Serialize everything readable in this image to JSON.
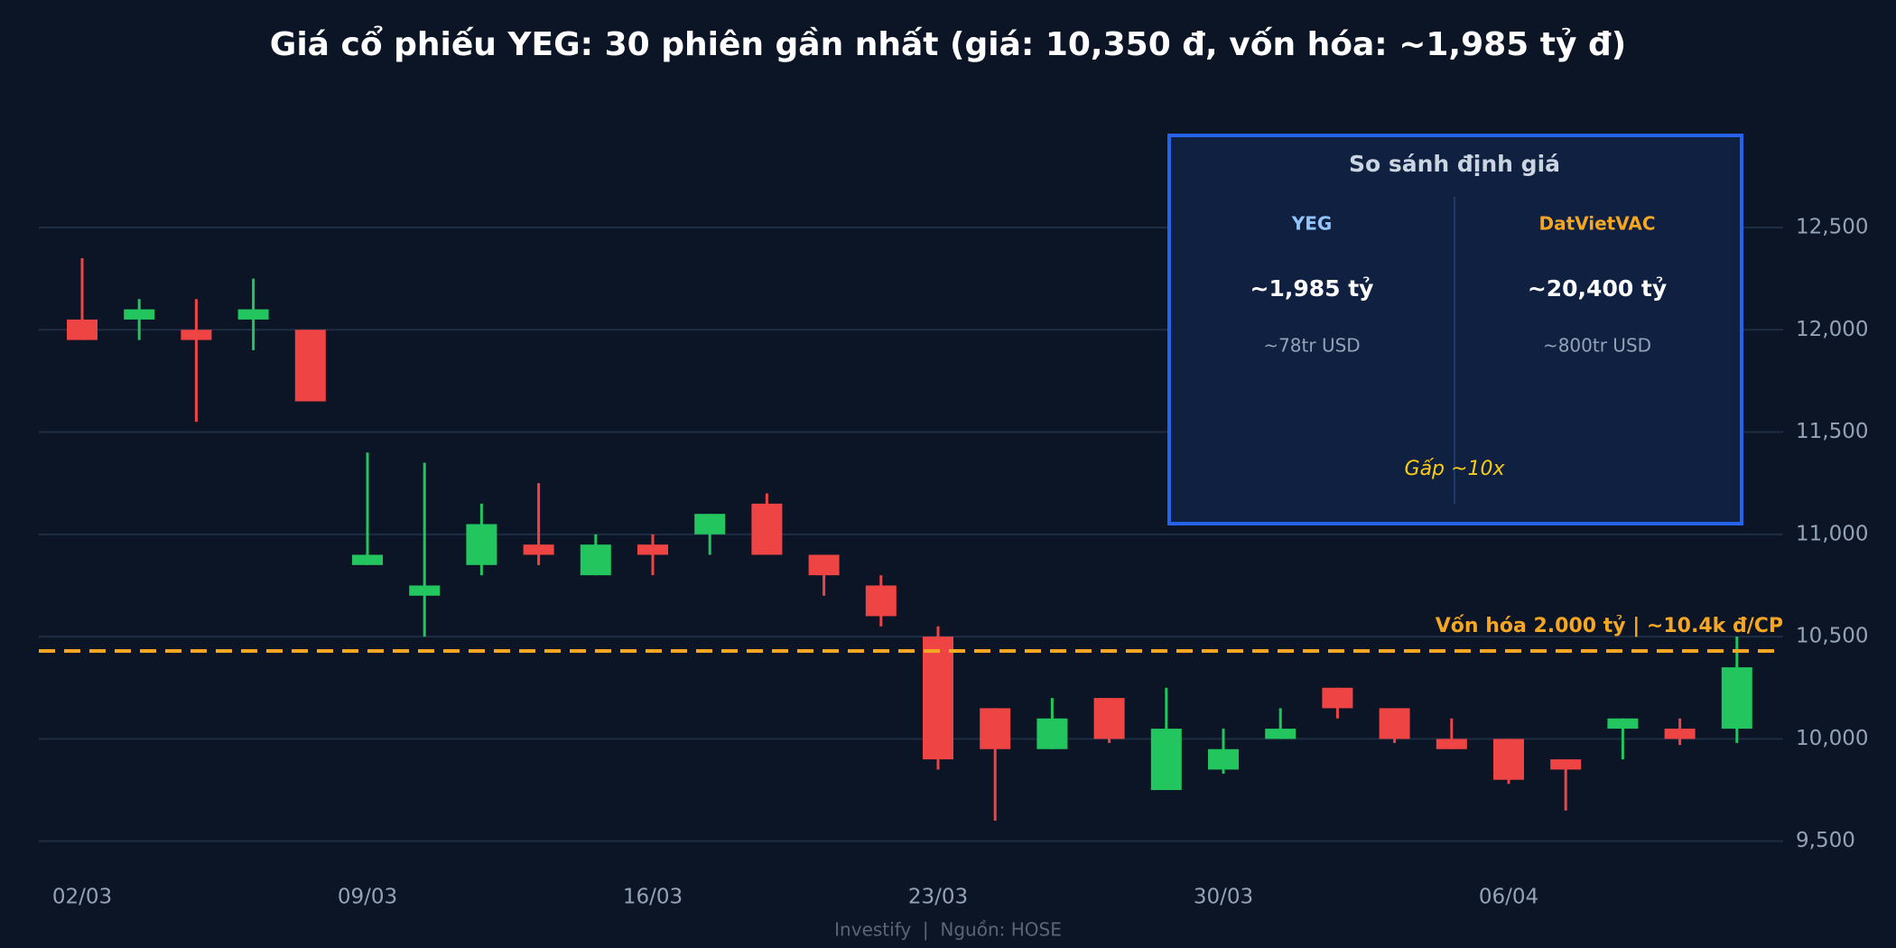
{
  "chart_data": {
    "type": "candlestick",
    "title": "Giá cổ phiếu YEG: 30 phiên gần nhất (giá: 10,350 đ, vốn hóa: ~1,985 tỷ đ)",
    "categories": [
      "02/03",
      null,
      null,
      null,
      null,
      "09/03",
      null,
      null,
      null,
      null,
      "16/03",
      null,
      null,
      null,
      null,
      "23/03",
      null,
      null,
      null,
      null,
      "30/03",
      null,
      null,
      null,
      null,
      "06/04",
      null,
      null,
      null,
      null
    ],
    "open": [
      12050,
      12050,
      12000,
      12050,
      12000,
      10850,
      10700,
      10850,
      10950,
      10800,
      10950,
      11000,
      11150,
      10900,
      10750,
      10500,
      10150,
      9950,
      10200,
      9750,
      9850,
      10000,
      10250,
      10150,
      10000,
      10000,
      9900,
      10050,
      10050,
      10050
    ],
    "high": [
      12350,
      12150,
      12150,
      12250,
      12000,
      11400,
      11350,
      11150,
      11250,
      11000,
      11000,
      11100,
      11200,
      10900,
      10800,
      10550,
      10150,
      10200,
      10200,
      10250,
      10050,
      10150,
      10250,
      10150,
      10100,
      10000,
      9900,
      10100,
      10100,
      10500
    ],
    "low": [
      11950,
      11950,
      11550,
      11900,
      11650,
      10850,
      10500,
      10800,
      10850,
      10800,
      10800,
      10900,
      10900,
      10700,
      10550,
      9850,
      9600,
      9950,
      9980,
      9750,
      9830,
      10000,
      10100,
      9980,
      9950,
      9780,
      9650,
      9900,
      9970,
      9980
    ],
    "close": [
      11950,
      12100,
      11950,
      12100,
      11650,
      10900,
      10750,
      11050,
      10900,
      10950,
      10900,
      11100,
      10900,
      10800,
      10600,
      9900,
      9950,
      10100,
      10000,
      10050,
      9950,
      10050,
      10150,
      10000,
      9950,
      9800,
      9850,
      10100,
      10000,
      10350
    ],
    "up_color": "#22c55e",
    "down_color": "#ef4444",
    "ylim": [
      9300,
      12800
    ],
    "yticks": [
      {
        "value": 9500,
        "label": "9,500"
      },
      {
        "value": 10000,
        "label": "10,000"
      },
      {
        "value": 10500,
        "label": "10,500"
      },
      {
        "value": 11000,
        "label": "11,000"
      },
      {
        "value": 11500,
        "label": "11,500"
      },
      {
        "value": 12000,
        "label": "12,000"
      },
      {
        "value": 12500,
        "label": "12,500"
      }
    ],
    "grid": true,
    "reference_line": {
      "value": 10430,
      "label": "Vốn hóa 2.000 tỷ | ~10.4k đ/CP",
      "color": "#f5a623"
    },
    "inset": {
      "title": "So sánh định giá",
      "columns": [
        {
          "name": "YEG",
          "color": "#93c5fd",
          "value": "~1,985 tỷ",
          "usd": "~78tr USD"
        },
        {
          "name": "DatVietVAC",
          "color": "#f5a623",
          "value": "~20,400 tỷ",
          "usd": "~800tr USD"
        }
      ],
      "note": "Gấp ~10x"
    },
    "footer": "Investify  |  Nguồn: HOSE"
  }
}
